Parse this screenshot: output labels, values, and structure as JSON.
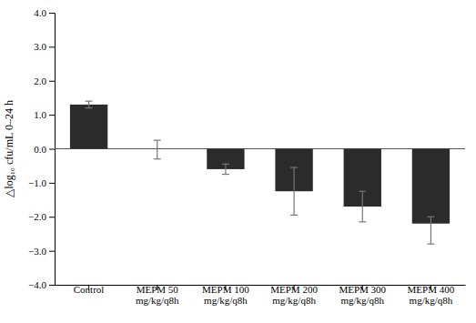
{
  "chart_data": {
    "type": "bar",
    "categories": [
      "Control",
      "MEPM 50\nmg/kg/q8h",
      "MEPM 100\nmg/kg/q8h",
      "MEPM 200\nmg/kg/q8h",
      "MEPM 300\nmg/kg/q8h",
      "MEPM 400\nmg/kg/q8h"
    ],
    "values": [
      1.3,
      0.0,
      -0.6,
      -1.25,
      -1.7,
      -2.2
    ],
    "errors_neg": [
      0.1,
      0.3,
      0.15,
      0.7,
      0.45,
      0.6
    ],
    "errors_pos": [
      0.1,
      0.25,
      0.15,
      0.7,
      0.45,
      0.2
    ],
    "color": "#2b2b2b",
    "ylabel": "△log₁₀ cfu/mL 0–24 h",
    "ylim": [
      -4.0,
      4.0
    ],
    "yticks": [
      {
        "value": -4.0,
        "label": "−4.0"
      },
      {
        "value": -3.0,
        "label": "−3.0"
      },
      {
        "value": -2.0,
        "label": "−2.0"
      },
      {
        "value": -1.0,
        "label": "−1.0"
      },
      {
        "value": 0.0,
        "label": "0.0"
      },
      {
        "value": 1.0,
        "label": "1.0"
      },
      {
        "value": 2.0,
        "label": "2.0"
      },
      {
        "value": 3.0,
        "label": "3.0"
      },
      {
        "value": 4.0,
        "label": "4.0"
      }
    ],
    "grid": false
  }
}
